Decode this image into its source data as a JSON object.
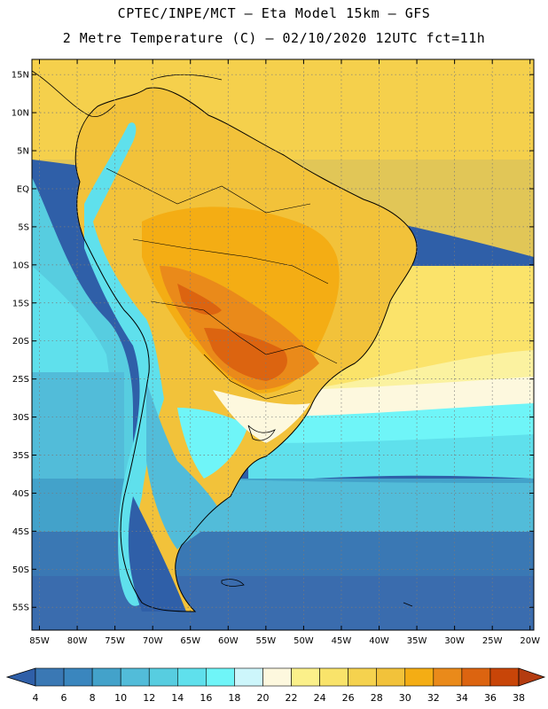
{
  "header": {
    "line1": "CPTEC/INPE/MCT –  Eta Model 15km – GFS",
    "line2": "2 Metre Temperature (C) – 02/10/2020 12UTC fct=11h"
  },
  "axes": {
    "lat_labels": [
      "15N",
      "10N",
      "5N",
      "EQ",
      "5S",
      "10S",
      "15S",
      "20S",
      "25S",
      "30S",
      "35S",
      "40S",
      "45S",
      "50S",
      "55S"
    ],
    "lat_values": [
      15,
      10,
      5,
      0,
      -5,
      -10,
      -15,
      -20,
      -25,
      -30,
      -35,
      -40,
      -45,
      -50,
      -55
    ],
    "lon_labels": [
      "85W",
      "80W",
      "75W",
      "70W",
      "65W",
      "60W",
      "55W",
      "50W",
      "45W",
      "40W",
      "35W",
      "30W",
      "25W",
      "20W"
    ],
    "lon_values": [
      -85,
      -80,
      -75,
      -70,
      -65,
      -60,
      -55,
      -50,
      -45,
      -40,
      -35,
      -30,
      -25,
      -20
    ],
    "lon_range": [
      -86,
      -19.5
    ],
    "lat_range": [
      -58,
      17
    ]
  },
  "colorbar": {
    "labels": [
      "4",
      "6",
      "8",
      "10",
      "12",
      "14",
      "16",
      "18",
      "20",
      "22",
      "24",
      "26",
      "28",
      "30",
      "32",
      "34",
      "36",
      "38"
    ],
    "colors": [
      "#3a78b4",
      "#3a86be",
      "#43a2ca",
      "#52bcd9",
      "#57cde0",
      "#5fe0ec",
      "#6ff5f8",
      "#cdf6fb",
      "#fdf8de",
      "#fbf08a",
      "#f9e36a",
      "#f5d24e",
      "#f2c23a",
      "#f4ad14",
      "#ea8a1a",
      "#dc6410",
      "#c84508"
    ],
    "low_color": "#2f5fa8",
    "high_color": "#b43c10"
  }
}
